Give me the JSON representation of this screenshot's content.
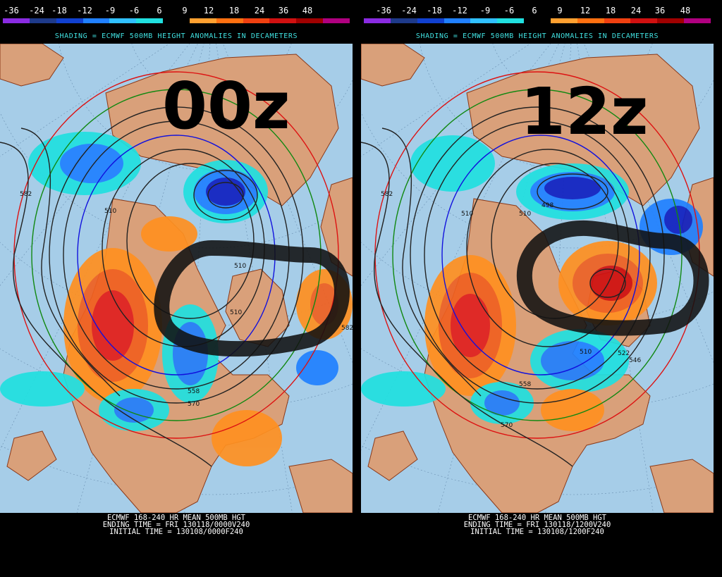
{
  "colorbar": {
    "labels": [
      "-36",
      "-24",
      "-18",
      "-12",
      "-9",
      "-6",
      "6",
      "9",
      "12",
      "18",
      "24",
      "36",
      "48"
    ],
    "colors": [
      "#8a2be2",
      "#1e3a8a",
      "#1040d0",
      "#2080ff",
      "#30c0ff",
      "#20e0e0",
      "#000000",
      "#ffa030",
      "#ff7010",
      "#f04010",
      "#d01010",
      "#a00000",
      "#b00080"
    ]
  },
  "panels": [
    {
      "id": "00z",
      "shading_title": "SHADING = ECMWF 500MB HEIGHT ANOMALIES IN DECAMETERS",
      "run_label": "00z",
      "contour_labels": [
        "582",
        "510",
        "510",
        "510",
        "558",
        "570",
        "582"
      ],
      "footer": {
        "line1": "ECMWF 168-240 HR MEAN 500MB HGT",
        "line2": "ENDING TIME = FRI 130118/0000V240",
        "line3": "INITIAL TIME = 130108/0000F240"
      }
    },
    {
      "id": "12z",
      "shading_title": "SHADING = ECMWF 500MB HEIGHT ANOMALIES IN DECAMETERS",
      "run_label": "12z",
      "contour_labels": [
        "582",
        "510",
        "510",
        "498",
        "510",
        "558",
        "570",
        "546",
        "522"
      ],
      "footer": {
        "line1": "ECMWF 168-240 HR MEAN 500MB HGT",
        "line2": "ENDING TIME = FRI 130118/1200V240",
        "line3": "INITIAL TIME = 130108/1200F240"
      }
    }
  ],
  "colors": {
    "ocean": "#a6cde8",
    "land": "#d9a07a",
    "border": "#8b3a1a",
    "contour": "#222222",
    "contour_red": "#dd1111",
    "contour_green": "#118811",
    "contour_blue": "#1111dd"
  }
}
